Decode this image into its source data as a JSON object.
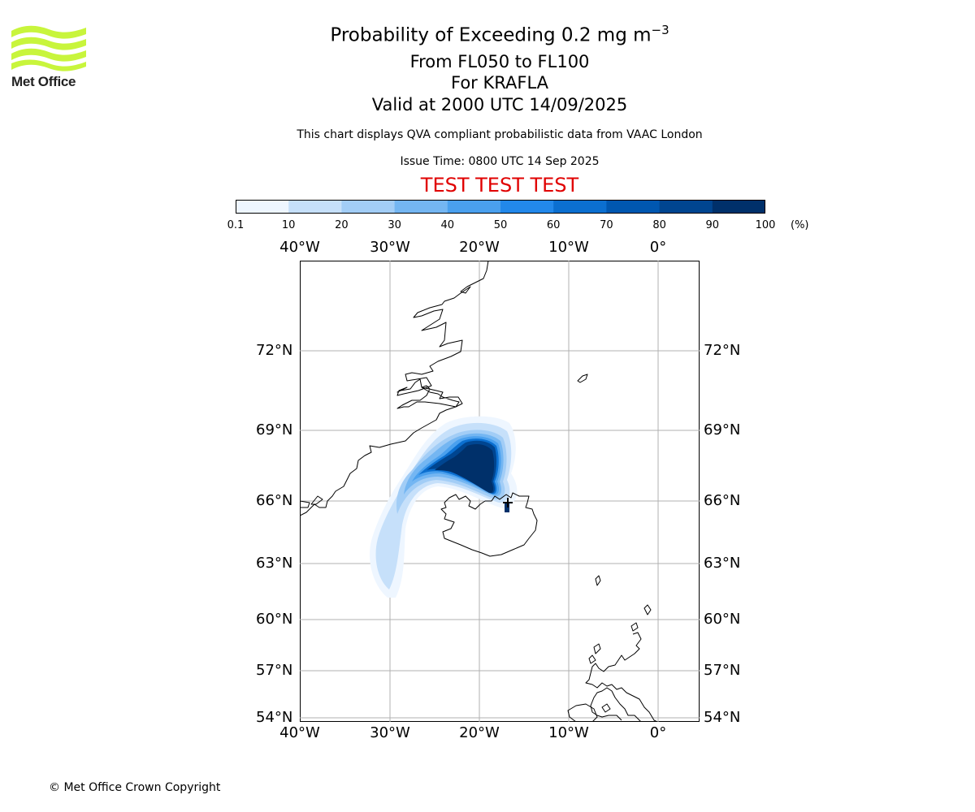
{
  "logo": {
    "text": "Met Office",
    "icon": "met-office-wave-logo",
    "color": "#c8f53c"
  },
  "header": {
    "title_main": "Probability of Exceeding 0.2 mg m",
    "title_sup": "−3",
    "level": "From FL050 to FL100",
    "volcano": "For KRAFLA",
    "valid": "Valid at 2000 UTC 14/09/2025",
    "description": "This chart displays QVA compliant probabilistic data from VAAC London",
    "issue_time": "Issue Time: 0800 UTC 14 Sep 2025",
    "test_banner": "TEST TEST TEST",
    "test_color": "#e00000"
  },
  "colorbar": {
    "ticks": [
      "0.1",
      "10",
      "20",
      "30",
      "40",
      "50",
      "60",
      "70",
      "80",
      "90",
      "100"
    ],
    "unit": "(%)",
    "colors": [
      "#eef6ff",
      "#c6e0fa",
      "#a2cdf6",
      "#74b6f2",
      "#4aa0ee",
      "#2288ea",
      "#0b6fd0",
      "#0057b0",
      "#004590",
      "#00306a"
    ]
  },
  "map": {
    "lon_labels": [
      "40°W",
      "30°W",
      "20°W",
      "10°W",
      "0°"
    ],
    "lat_labels": [
      "72°N",
      "69°N",
      "66°N",
      "63°N",
      "60°N",
      "57°N",
      "54°N"
    ],
    "grid": true,
    "projection": "polar stereographic",
    "extent": {
      "lon": [
        -40,
        5
      ],
      "lat": [
        54,
        75
      ]
    }
  },
  "footer": {
    "copyright": "© Met Office Crown Copyright"
  }
}
